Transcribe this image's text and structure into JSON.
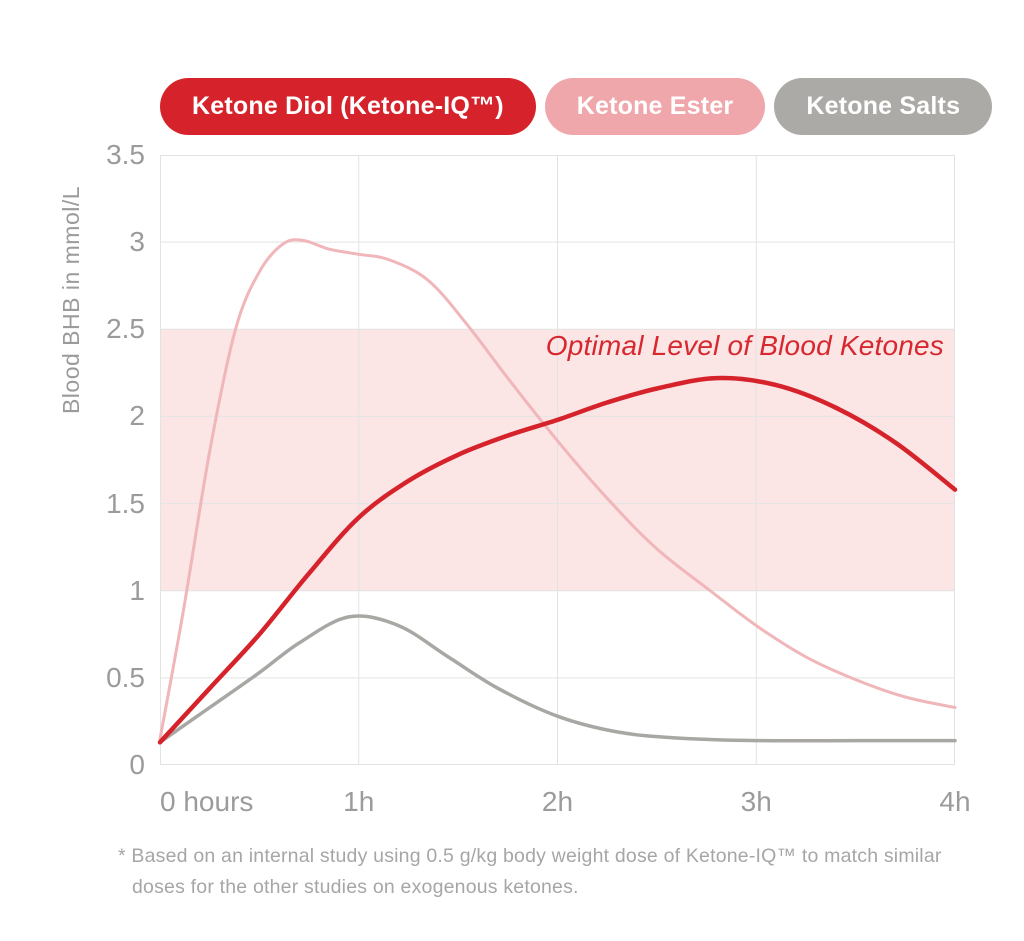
{
  "legend": {
    "items": [
      {
        "label": "Ketone Diol (Ketone-IQ™)",
        "color": "#d6232b",
        "text_color": "#ffffff"
      },
      {
        "label": "Ketone Ester",
        "color": "#efa7ab",
        "text_color": "#ffffff"
      },
      {
        "label": "Ketone Salts",
        "color": "#abaaa6",
        "text_color": "#ffffff"
      }
    ]
  },
  "chart_data": {
    "type": "line",
    "title": "",
    "xlabel": "",
    "ylabel": "Blood BHB in mmol/L",
    "xlim": [
      0,
      4
    ],
    "ylim": [
      0,
      3.5
    ],
    "grid": true,
    "grid_color": "#e3e3e3",
    "x_unit": "hours",
    "x_ticks": [
      {
        "value": 0,
        "label": "0 hours"
      },
      {
        "value": 1,
        "label": "1h"
      },
      {
        "value": 2,
        "label": "2h"
      },
      {
        "value": 3,
        "label": "3h"
      },
      {
        "value": 4,
        "label": "4h"
      }
    ],
    "y_ticks": [
      {
        "value": 0,
        "label": "0"
      },
      {
        "value": 0.5,
        "label": "0.5"
      },
      {
        "value": 1,
        "label": "1"
      },
      {
        "value": 1.5,
        "label": "1.5"
      },
      {
        "value": 2,
        "label": "2"
      },
      {
        "value": 2.5,
        "label": "2.5"
      },
      {
        "value": 3,
        "label": "3"
      },
      {
        "value": 3.5,
        "label": "3.5"
      }
    ],
    "band": {
      "from": 1.0,
      "to": 2.5,
      "color": "#fbe5e5",
      "label": "Optimal Level of Blood Ketones",
      "label_color": "#d7282f"
    },
    "series": [
      {
        "name": "Ketone Ester",
        "color": "#f0b6b9",
        "stroke_width": 3,
        "points": [
          [
            0,
            0.15
          ],
          [
            0.12,
            0.9
          ],
          [
            0.25,
            1.8
          ],
          [
            0.38,
            2.5
          ],
          [
            0.5,
            2.83
          ],
          [
            0.62,
            2.99
          ],
          [
            0.72,
            3.01
          ],
          [
            0.85,
            2.96
          ],
          [
            1,
            2.93
          ],
          [
            1.15,
            2.9
          ],
          [
            1.35,
            2.78
          ],
          [
            1.55,
            2.52
          ],
          [
            1.75,
            2.22
          ],
          [
            2,
            1.86
          ],
          [
            2.25,
            1.53
          ],
          [
            2.5,
            1.24
          ],
          [
            2.78,
            0.99
          ],
          [
            3,
            0.8
          ],
          [
            3.25,
            0.62
          ],
          [
            3.5,
            0.49
          ],
          [
            3.75,
            0.39
          ],
          [
            4,
            0.33
          ]
        ]
      },
      {
        "name": "Ketone Salts",
        "color": "#a8a7a3",
        "stroke_width": 3.5,
        "points": [
          [
            0,
            0.13
          ],
          [
            0.25,
            0.33
          ],
          [
            0.5,
            0.53
          ],
          [
            0.7,
            0.7
          ],
          [
            0.95,
            0.85
          ],
          [
            1.2,
            0.8
          ],
          [
            1.45,
            0.62
          ],
          [
            1.7,
            0.44
          ],
          [
            2,
            0.28
          ],
          [
            2.3,
            0.19
          ],
          [
            2.6,
            0.155
          ],
          [
            3,
            0.14
          ],
          [
            3.5,
            0.14
          ],
          [
            4,
            0.14
          ]
        ]
      },
      {
        "name": "Ketone Diol (Ketone-IQ™)",
        "color": "#d6232b",
        "stroke_width": 4.5,
        "points": [
          [
            0,
            0.13
          ],
          [
            0.25,
            0.44
          ],
          [
            0.5,
            0.75
          ],
          [
            0.75,
            1.1
          ],
          [
            1,
            1.42
          ],
          [
            1.25,
            1.63
          ],
          [
            1.5,
            1.78
          ],
          [
            1.75,
            1.89
          ],
          [
            2,
            1.98
          ],
          [
            2.25,
            2.08
          ],
          [
            2.5,
            2.16
          ],
          [
            2.8,
            2.22
          ],
          [
            3.1,
            2.18
          ],
          [
            3.4,
            2.05
          ],
          [
            3.7,
            1.85
          ],
          [
            4,
            1.58
          ]
        ]
      }
    ]
  },
  "footnote": {
    "marker": "*",
    "text": "Based on an internal study using 0.5 g/kg body weight dose of Ketone-IQ™ to match similar doses for the other studies on exogenous ketones."
  }
}
